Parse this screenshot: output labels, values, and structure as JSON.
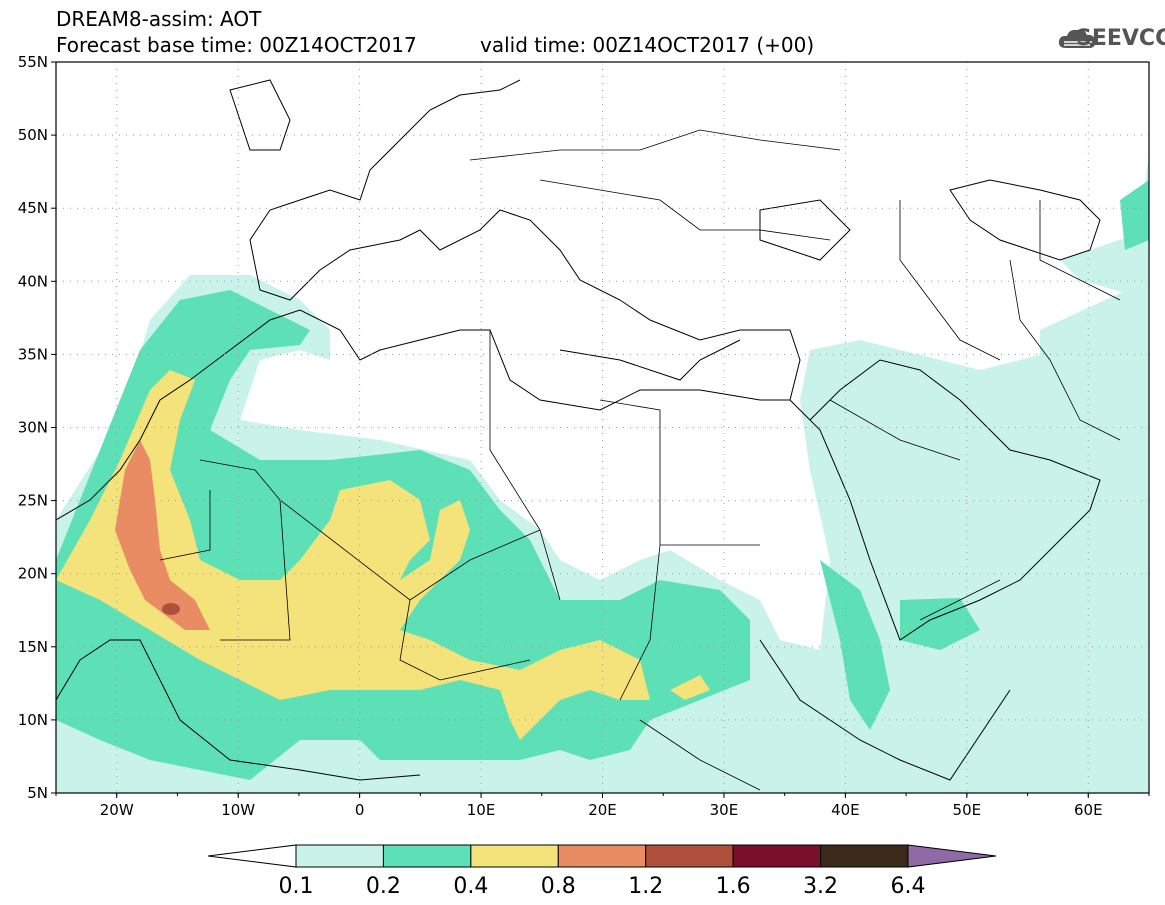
{
  "header": {
    "title_line1": "DREAM8-assim: AOT",
    "title_line2": "Forecast base time: 00Z14OCT2017",
    "valid_time": "valid time: 00Z14OCT2017 (+00)",
    "logo_text": "SEEVCCC"
  },
  "map": {
    "lat_labels": [
      "55N",
      "50N",
      "45N",
      "40N",
      "35N",
      "30N",
      "25N",
      "20N",
      "15N",
      "10N",
      "5N"
    ],
    "lon_labels": [
      "20W",
      "10W",
      "0",
      "10E",
      "20E",
      "30E",
      "40E",
      "50E",
      "60E"
    ],
    "extent": {
      "lon_min": -25,
      "lon_max": 65,
      "lat_min": 5,
      "lat_max": 55
    }
  },
  "colorbar": {
    "tick_labels": [
      "0.1",
      "0.2",
      "0.4",
      "0.8",
      "1.2",
      "1.6",
      "3.2",
      "6.4"
    ],
    "colors": [
      "#ffffff",
      "#c8f2ea",
      "#5ee0b6",
      "#f4e37a",
      "#e98c64",
      "#b0503c",
      "#7a0f2c",
      "#3b2a1a",
      "#8f6aa6"
    ]
  },
  "colors": {
    "level1": "#c8f2ea",
    "level2": "#5ee0b6",
    "level3": "#f4e37a",
    "level4": "#e98c64",
    "level5": "#b0503c"
  }
}
